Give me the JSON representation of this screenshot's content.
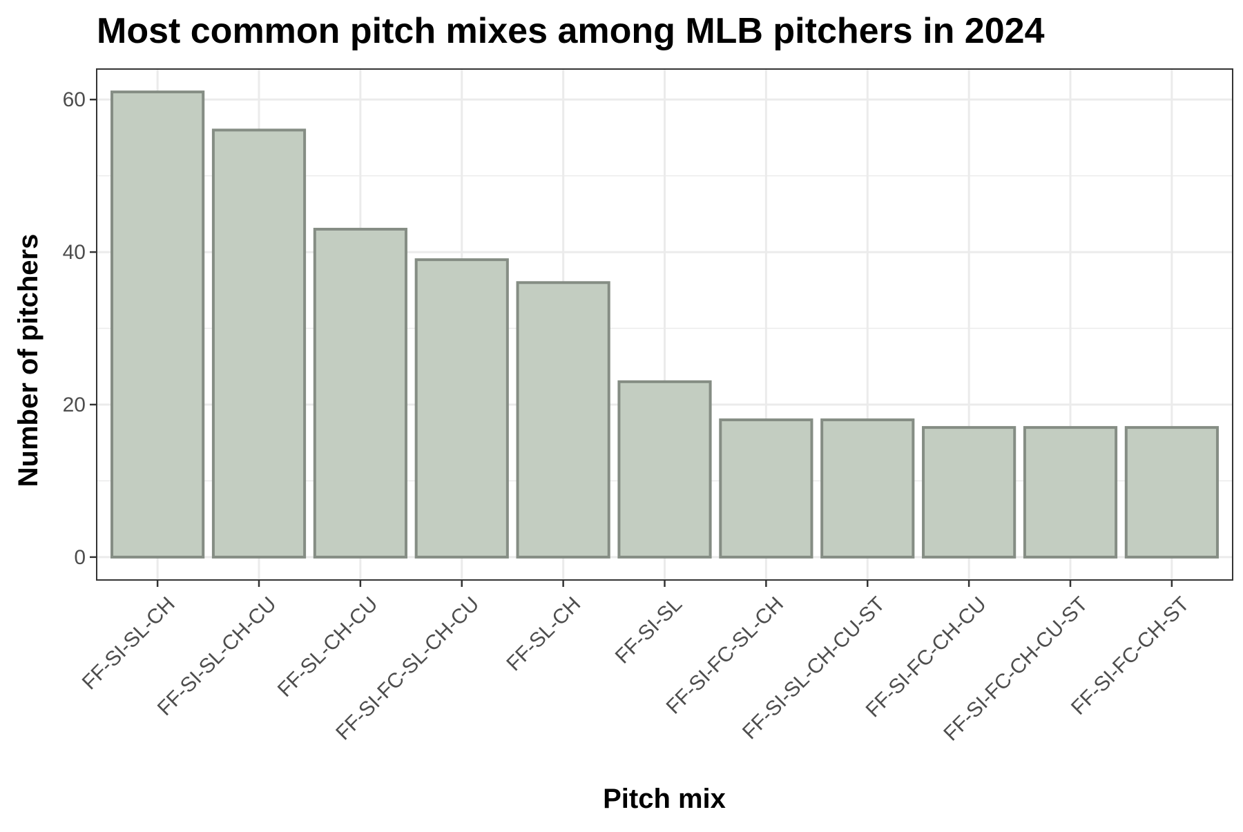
{
  "chart_data": {
    "type": "bar",
    "title": "Most common pitch mixes among MLB pitchers in 2024",
    "xlabel": "Pitch mix",
    "ylabel": "Number of pitchers",
    "categories": [
      "FF-SI-SL-CH",
      "FF-SI-SL-CH-CU",
      "FF-SL-CH-CU",
      "FF-SI-FC-SL-CH-CU",
      "FF-SL-CH",
      "FF-SI-SL",
      "FF-SI-FC-SL-CH",
      "FF-SI-SL-CH-CU-ST",
      "FF-SI-FC-CH-CU",
      "FF-SI-FC-CH-CU-ST",
      "FF-SI-FC-CH-ST"
    ],
    "values": [
      61,
      56,
      43,
      39,
      36,
      23,
      18,
      18,
      17,
      17,
      17
    ],
    "ylim": [
      -3,
      64
    ],
    "yticks": [
      0,
      20,
      40,
      60
    ],
    "grid": true,
    "legend": "none",
    "colors": {
      "bar_fill": "#c3cdc1",
      "bar_stroke": "#858d84"
    }
  }
}
